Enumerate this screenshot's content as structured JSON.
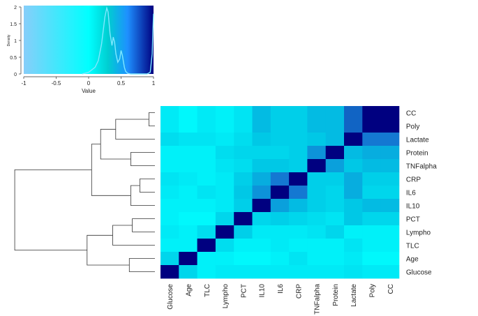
{
  "chart_data": [
    {
      "type": "line",
      "title": "",
      "xlabel": "Value",
      "ylabel": "Density",
      "xlim": [
        -1,
        1
      ],
      "ylim": [
        0,
        2
      ],
      "x_ticks": [
        "-1",
        "-0.5",
        "0",
        "0.5",
        "1"
      ],
      "y_ticks": [
        "0",
        "0.5",
        "1",
        "1.5",
        "2"
      ],
      "colorscale": [
        "#87cefa",
        "#00ffff",
        "#00ced1",
        "#1e90ff",
        "#000080"
      ],
      "density_curve": {
        "x": [
          -0.1,
          0.0,
          0.1,
          0.15,
          0.2,
          0.25,
          0.28,
          0.3,
          0.33,
          0.36,
          0.38,
          0.4,
          0.42,
          0.45,
          0.48,
          0.5,
          0.52,
          0.55,
          0.57,
          0.6,
          0.65,
          0.7,
          0.8,
          0.9,
          0.95,
          0.98,
          0.99,
          1.0
        ],
        "y": [
          0.0,
          0.05,
          0.2,
          0.4,
          0.9,
          1.7,
          1.97,
          1.85,
          1.2,
          0.85,
          1.1,
          0.95,
          0.6,
          0.35,
          0.45,
          0.7,
          0.55,
          0.2,
          0.08,
          0.02,
          0.0,
          0.0,
          0.0,
          0.0,
          0.05,
          0.6,
          1.3,
          1.8
        ]
      }
    },
    {
      "type": "heatmap",
      "title": "",
      "metric": "correlation",
      "row_labels": [
        "CC",
        "Poly",
        "Lactate",
        "Protein",
        "TNFalpha",
        "CRP",
        "IL6",
        "IL10",
        "PCT",
        "Lympho",
        "TLC",
        "Age",
        "Glucose"
      ],
      "col_labels": [
        "Glucose",
        "Age",
        "TLC",
        "Lympho",
        "PCT",
        "IL10",
        "IL6",
        "CRP",
        "TNFalpha",
        "Protein",
        "Lactate",
        "Poly",
        "CC"
      ],
      "values": [
        [
          0.15,
          0.05,
          0.15,
          0.1,
          0.2,
          0.45,
          0.35,
          0.35,
          0.45,
          0.45,
          0.75,
          1.0,
          1.0
        ],
        [
          0.15,
          0.05,
          0.15,
          0.1,
          0.2,
          0.45,
          0.35,
          0.35,
          0.45,
          0.45,
          0.75,
          1.0,
          1.0
        ],
        [
          0.25,
          0.2,
          0.2,
          0.15,
          0.25,
          0.4,
          0.35,
          0.35,
          0.4,
          0.45,
          1.0,
          0.7,
          0.7
        ],
        [
          0.1,
          0.1,
          0.1,
          0.25,
          0.3,
          0.3,
          0.3,
          0.35,
          0.6,
          1.0,
          0.45,
          0.5,
          0.5
        ],
        [
          0.1,
          0.1,
          0.1,
          0.2,
          0.25,
          0.4,
          0.4,
          0.35,
          1.0,
          0.55,
          0.4,
          0.45,
          0.45
        ],
        [
          0.2,
          0.15,
          0.1,
          0.15,
          0.35,
          0.5,
          0.7,
          1.0,
          0.35,
          0.35,
          0.5,
          0.35,
          0.35
        ],
        [
          0.15,
          0.1,
          0.2,
          0.15,
          0.4,
          0.6,
          1.0,
          0.7,
          0.35,
          0.3,
          0.5,
          0.3,
          0.3
        ],
        [
          0.1,
          0.1,
          0.1,
          0.15,
          0.35,
          1.0,
          0.55,
          0.45,
          0.35,
          0.3,
          0.4,
          0.45,
          0.45
        ],
        [
          0.1,
          0.05,
          0.05,
          0.3,
          1.0,
          0.3,
          0.35,
          0.3,
          0.25,
          0.2,
          0.4,
          0.3,
          0.3
        ],
        [
          0.15,
          0.1,
          0.25,
          1.0,
          0.35,
          0.15,
          0.15,
          0.15,
          0.2,
          0.3,
          0.1,
          0.1,
          0.1
        ],
        [
          0.1,
          0.1,
          1.0,
          0.25,
          0.1,
          0.1,
          0.15,
          0.1,
          0.1,
          0.1,
          0.2,
          0.1,
          0.1
        ],
        [
          0.3,
          1.0,
          0.1,
          0.1,
          0.05,
          0.05,
          0.1,
          0.2,
          0.1,
          0.1,
          0.15,
          0.05,
          0.05
        ],
        [
          1.0,
          0.3,
          0.1,
          0.15,
          0.15,
          0.15,
          0.15,
          0.15,
          0.15,
          0.15,
          0.2,
          0.15,
          0.15
        ]
      ],
      "dendrogram_merges": [
        {
          "a": "CC",
          "b": "Poly",
          "height": 0.04
        },
        {
          "a": "CRP",
          "b": "IL6",
          "height": 0.1
        },
        {
          "a": "Protein",
          "b": "TNFalpha",
          "height": 0.16
        },
        {
          "a": "PCT",
          "b": "Lympho",
          "height": 0.15
        },
        {
          "a": "Age",
          "b": "Glucose",
          "height": 0.17
        },
        {
          "a": "CRP+IL6",
          "b": "IL10",
          "height": 0.16
        },
        {
          "a": "CC+Poly",
          "b": "Lactate",
          "height": 0.26
        },
        {
          "a": "PCT+Lympho",
          "b": "TLC",
          "height": 0.28
        },
        {
          "a": "CC+Poly+Lactate",
          "b": "Protein+TNFalpha",
          "height": 0.36
        },
        {
          "a": "TNF-group",
          "b": "CRP+IL6+IL10",
          "height": 0.42
        },
        {
          "a": "PCT+Lympho+TLC",
          "b": "Age+Glucose",
          "height": 0.45
        },
        {
          "a": "upper-group",
          "b": "lower-group",
          "height": 0.93
        }
      ]
    }
  ]
}
